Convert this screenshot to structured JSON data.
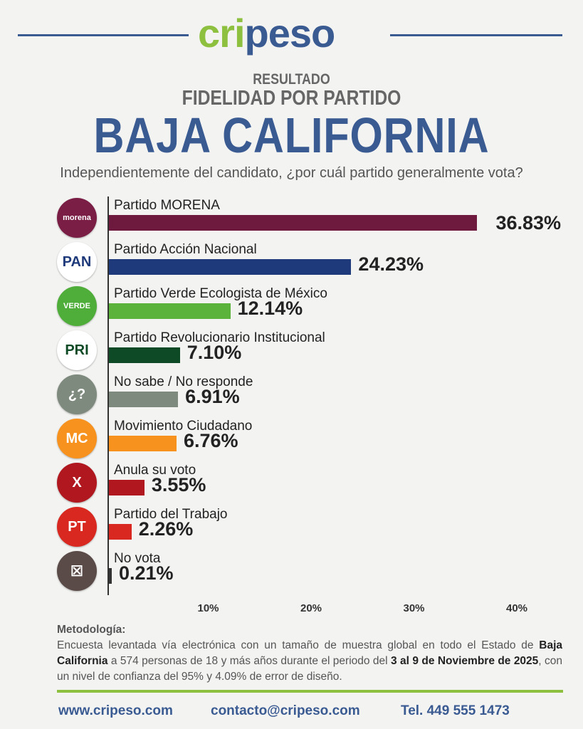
{
  "header": {
    "logo_part1": "cri",
    "logo_part2": "peso",
    "title_small": "RESULTADO",
    "title_medium": "FIDELIDAD POR PARTIDO",
    "title_large": "BAJA CALIFORNIA",
    "question": "Independientemente del candidato, ¿por cuál partido generalmente vota?"
  },
  "chart_data": {
    "type": "bar",
    "orientation": "horizontal",
    "xlim": [
      0,
      40
    ],
    "ticks": [
      "10%",
      "20%",
      "30%",
      "40%"
    ],
    "tick_values": [
      10,
      20,
      30,
      40
    ],
    "categories": [
      "Partido MORENA",
      "Partido Acción Nacional",
      "Partido Verde Ecologista de México",
      "Partido Revolucionario Institucional",
      "No sabe / No responde",
      "Movimiento Ciudadano",
      "Anula su voto",
      "Partido del Trabajo",
      "No vota"
    ],
    "values": [
      36.83,
      24.23,
      12.14,
      7.1,
      6.91,
      6.76,
      3.55,
      2.26,
      0.21
    ],
    "value_labels": [
      "36.83%",
      "24.23%",
      "12.14%",
      "7.10%",
      "6.91%",
      "6.76%",
      "3.55%",
      "2.26%",
      "0.21%"
    ],
    "colors": [
      "#6e1a3f",
      "#1f3a7a",
      "#5cb33b",
      "#0d4a25",
      "#7d8a7d",
      "#f7921e",
      "#b0171f",
      "#d8281f",
      "#333333"
    ],
    "icons": [
      {
        "name": "morena-logo",
        "text": "morena",
        "bg": "#7a1e45"
      },
      {
        "name": "pan-logo",
        "text": "PAN",
        "bg": "#ffffff"
      },
      {
        "name": "verde-logo",
        "text": "VERDE",
        "bg": "#4fae3a"
      },
      {
        "name": "pri-logo",
        "text": "PRI",
        "bg": "#ffffff"
      },
      {
        "name": "question-icon",
        "text": "¿?",
        "bg": "#7d8a7d"
      },
      {
        "name": "mc-logo",
        "text": "MC",
        "bg": "#f7921e"
      },
      {
        "name": "x-icon",
        "text": "X",
        "bg": "#b0171f"
      },
      {
        "name": "pt-logo",
        "text": "PT",
        "bg": "#d8281f"
      },
      {
        "name": "ballot-icon",
        "text": "☒",
        "bg": "#5a4a48"
      }
    ]
  },
  "methodology": {
    "heading": "Metodología:",
    "p1": "Encuesta levantada vía electrónica con un tamaño de muestra global en todo el Estado de ",
    "b1": "Baja California",
    "p2": " a 574 personas de 18 y más años durante el periodo del ",
    "b2": "3 al 9 de Noviembre de 2025",
    "p3": ", con un nivel de confianza del 95% y 4.09% de error de diseño."
  },
  "footer": {
    "web": "www.cripeso.com",
    "email": "contacto@cripeso.com",
    "phone": "Tel. 449 555 1473"
  }
}
